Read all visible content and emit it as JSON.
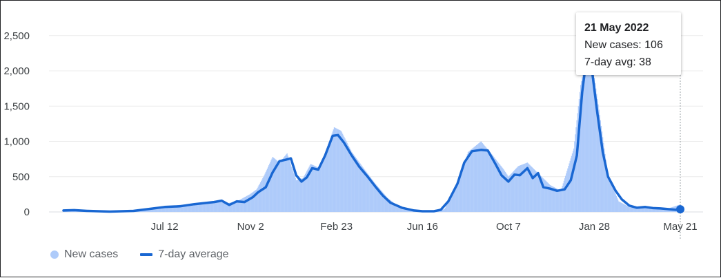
{
  "chart_data": {
    "type": "bar",
    "x_range": [
      "2020-03-01",
      "2022-05-21"
    ],
    "ylim": [
      0,
      2800
    ],
    "yticks": [
      {
        "value": 0,
        "label": "0"
      },
      {
        "value": 500,
        "label": "500"
      },
      {
        "value": 1000,
        "label": "1,000"
      },
      {
        "value": 1500,
        "label": "1,500"
      },
      {
        "value": 2000,
        "label": "2,000"
      },
      {
        "value": 2500,
        "label": "2,500"
      }
    ],
    "xticks": [
      {
        "date": "2020-07-12",
        "label": "Jul 12"
      },
      {
        "date": "2020-11-02",
        "label": "Nov 2"
      },
      {
        "date": "2021-02-23",
        "label": "Feb 23"
      },
      {
        "date": "2021-06-16",
        "label": "Jun 16"
      },
      {
        "date": "2021-10-07",
        "label": "Oct 7"
      },
      {
        "date": "2022-01-28",
        "label": "Jan 28"
      },
      {
        "date": "2022-05-21",
        "label": "May 21"
      }
    ],
    "grid": true,
    "legend_position": "bottom-left",
    "series": [
      {
        "name": "New cases",
        "kind": "bar",
        "color": "#aecbfa",
        "points": [
          [
            "2020-03-01",
            30
          ],
          [
            "2020-04-01",
            15
          ],
          [
            "2020-05-01",
            10
          ],
          [
            "2020-06-01",
            20
          ],
          [
            "2020-07-01",
            60
          ],
          [
            "2020-08-01",
            100
          ],
          [
            "2020-09-01",
            130
          ],
          [
            "2020-09-20",
            150
          ],
          [
            "2020-10-01",
            120
          ],
          [
            "2020-10-15",
            150
          ],
          [
            "2020-11-01",
            250
          ],
          [
            "2020-11-10",
            320
          ],
          [
            "2020-11-20",
            520
          ],
          [
            "2020-12-01",
            780
          ],
          [
            "2020-12-10",
            700
          ],
          [
            "2020-12-20",
            830
          ],
          [
            "2021-01-01",
            450
          ],
          [
            "2021-01-10",
            480
          ],
          [
            "2021-01-20",
            680
          ],
          [
            "2021-02-01",
            620
          ],
          [
            "2021-02-10",
            900
          ],
          [
            "2021-02-20",
            1200
          ],
          [
            "2021-03-01",
            1150
          ],
          [
            "2021-03-15",
            850
          ],
          [
            "2021-04-01",
            600
          ],
          [
            "2021-04-15",
            400
          ],
          [
            "2021-05-01",
            200
          ],
          [
            "2021-05-15",
            80
          ],
          [
            "2021-06-01",
            30
          ],
          [
            "2021-06-16",
            15
          ],
          [
            "2021-07-01",
            10
          ],
          [
            "2021-07-15",
            40
          ],
          [
            "2021-08-01",
            400
          ],
          [
            "2021-08-15",
            850
          ],
          [
            "2021-09-01",
            1000
          ],
          [
            "2021-09-15",
            820
          ],
          [
            "2021-10-01",
            600
          ],
          [
            "2021-10-07",
            500
          ],
          [
            "2021-10-20",
            650
          ],
          [
            "2021-11-01",
            700
          ],
          [
            "2021-11-15",
            550
          ],
          [
            "2021-12-01",
            380
          ],
          [
            "2021-12-15",
            300
          ],
          [
            "2022-01-01",
            900
          ],
          [
            "2022-01-10",
            1800
          ],
          [
            "2022-01-20",
            2350
          ],
          [
            "2022-01-28",
            1900
          ],
          [
            "2022-02-05",
            1300
          ],
          [
            "2022-02-15",
            500
          ],
          [
            "2022-03-01",
            150
          ],
          [
            "2022-03-15",
            70
          ],
          [
            "2022-04-01",
            60
          ],
          [
            "2022-04-15",
            45
          ],
          [
            "2022-05-01",
            35
          ],
          [
            "2022-05-21",
            106
          ]
        ]
      },
      {
        "name": "7-day average",
        "kind": "line",
        "color": "#1967d2",
        "points": [
          [
            "2020-03-01",
            20
          ],
          [
            "2020-03-15",
            25
          ],
          [
            "2020-04-01",
            15
          ],
          [
            "2020-05-01",
            5
          ],
          [
            "2020-06-01",
            15
          ],
          [
            "2020-06-20",
            40
          ],
          [
            "2020-07-12",
            70
          ],
          [
            "2020-08-01",
            80
          ],
          [
            "2020-08-20",
            110
          ],
          [
            "2020-09-15",
            140
          ],
          [
            "2020-09-25",
            160
          ],
          [
            "2020-10-05",
            100
          ],
          [
            "2020-10-15",
            150
          ],
          [
            "2020-10-25",
            140
          ],
          [
            "2020-11-05",
            210
          ],
          [
            "2020-11-12",
            280
          ],
          [
            "2020-11-22",
            350
          ],
          [
            "2020-12-01",
            560
          ],
          [
            "2020-12-10",
            720
          ],
          [
            "2020-12-18",
            740
          ],
          [
            "2020-12-25",
            760
          ],
          [
            "2021-01-01",
            520
          ],
          [
            "2021-01-08",
            430
          ],
          [
            "2021-01-15",
            490
          ],
          [
            "2021-01-22",
            620
          ],
          [
            "2021-01-30",
            600
          ],
          [
            "2021-02-08",
            800
          ],
          [
            "2021-02-18",
            1080
          ],
          [
            "2021-02-25",
            1090
          ],
          [
            "2021-03-05",
            980
          ],
          [
            "2021-03-15",
            800
          ],
          [
            "2021-03-25",
            640
          ],
          [
            "2021-04-05",
            500
          ],
          [
            "2021-04-15",
            360
          ],
          [
            "2021-04-25",
            230
          ],
          [
            "2021-05-05",
            130
          ],
          [
            "2021-05-20",
            60
          ],
          [
            "2021-06-05",
            20
          ],
          [
            "2021-06-16",
            10
          ],
          [
            "2021-07-01",
            10
          ],
          [
            "2021-07-10",
            30
          ],
          [
            "2021-07-20",
            150
          ],
          [
            "2021-08-01",
            400
          ],
          [
            "2021-08-10",
            700
          ],
          [
            "2021-08-20",
            860
          ],
          [
            "2021-09-01",
            880
          ],
          [
            "2021-09-10",
            870
          ],
          [
            "2021-09-20",
            680
          ],
          [
            "2021-09-28",
            520
          ],
          [
            "2021-10-07",
            430
          ],
          [
            "2021-10-15",
            530
          ],
          [
            "2021-10-22",
            520
          ],
          [
            "2021-11-01",
            620
          ],
          [
            "2021-11-08",
            480
          ],
          [
            "2021-11-15",
            550
          ],
          [
            "2021-11-22",
            350
          ],
          [
            "2021-12-01",
            330
          ],
          [
            "2021-12-10",
            300
          ],
          [
            "2021-12-20",
            320
          ],
          [
            "2021-12-28",
            450
          ],
          [
            "2022-01-05",
            800
          ],
          [
            "2022-01-12",
            1700
          ],
          [
            "2022-01-18",
            2200
          ],
          [
            "2022-01-25",
            2000
          ],
          [
            "2022-02-01",
            1400
          ],
          [
            "2022-02-08",
            850
          ],
          [
            "2022-02-15",
            500
          ],
          [
            "2022-02-25",
            300
          ],
          [
            "2022-03-05",
            180
          ],
          [
            "2022-03-15",
            90
          ],
          [
            "2022-03-25",
            60
          ],
          [
            "2022-04-05",
            70
          ],
          [
            "2022-04-15",
            55
          ],
          [
            "2022-04-25",
            50
          ],
          [
            "2022-05-05",
            40
          ],
          [
            "2022-05-15",
            30
          ],
          [
            "2022-05-21",
            38
          ]
        ]
      }
    ],
    "highlight": {
      "date": "2022-05-21",
      "value": 38
    }
  },
  "tooltip": {
    "date": "21 May 2022",
    "cases_line": "New cases: 106",
    "avg_line": "7-day avg: 38"
  },
  "legend": {
    "cases_label": "New cases",
    "avg_label": "7-day average"
  }
}
